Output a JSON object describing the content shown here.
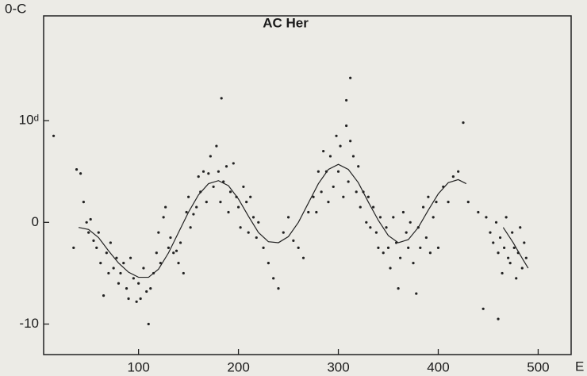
{
  "chart_data": {
    "type": "scatter",
    "title": "AC Her",
    "y_label": "0-C",
    "x_label": "E",
    "color": "#222222",
    "xlim": [
      5,
      533
    ],
    "ylim": [
      -13,
      20.3
    ],
    "xticks": [
      100,
      200,
      300,
      400,
      500
    ],
    "yticks": [
      -10,
      0,
      {
        "value": 10,
        "label": "10ᵈ"
      }
    ],
    "points": {
      "x": [
        15,
        35,
        183,
        312,
        308,
        425,
        445,
        460,
        38,
        42,
        45,
        48,
        50,
        52,
        55,
        58,
        60,
        62,
        65,
        68,
        70,
        72,
        75,
        78,
        80,
        82,
        85,
        88,
        90,
        92,
        95,
        98,
        100,
        102,
        105,
        108,
        110,
        112,
        115,
        118,
        120,
        122,
        125,
        127,
        130,
        132,
        135,
        138,
        140,
        142,
        145,
        148,
        150,
        152,
        155,
        158,
        160,
        162,
        165,
        168,
        170,
        172,
        175,
        178,
        180,
        182,
        185,
        188,
        190,
        192,
        195,
        198,
        200,
        202,
        205,
        208,
        210,
        212,
        215,
        218,
        220,
        225,
        230,
        235,
        240,
        245,
        250,
        255,
        260,
        265,
        270,
        275,
        278,
        280,
        283,
        285,
        288,
        290,
        292,
        295,
        298,
        300,
        302,
        305,
        308,
        310,
        312,
        315,
        318,
        320,
        322,
        325,
        328,
        330,
        332,
        335,
        338,
        340,
        342,
        345,
        348,
        350,
        352,
        355,
        358,
        360,
        362,
        365,
        368,
        370,
        372,
        375,
        378,
        380,
        382,
        385,
        388,
        390,
        392,
        395,
        398,
        400,
        405,
        410,
        415,
        420,
        430,
        440,
        448,
        452,
        455,
        458,
        460,
        462,
        464,
        466,
        468,
        470,
        472,
        474,
        476,
        478,
        480,
        482,
        484,
        486,
        488
      ],
      "values": [
        8.5,
        -2.5,
        12.2,
        14.2,
        12,
        9.8,
        -8.5,
        -9.5,
        5.2,
        4.8,
        2,
        0,
        -1,
        0.3,
        -1.8,
        -2.5,
        -1,
        -4,
        -7.2,
        -3,
        -5,
        -2,
        -4.5,
        -3.5,
        -6,
        -5,
        -4,
        -6.5,
        -7.5,
        -3.5,
        -5.5,
        -7.8,
        -6,
        -7.5,
        -4.5,
        -6.8,
        -10,
        -6.5,
        -5,
        -3,
        -1,
        -4,
        0.5,
        1.5,
        -2.5,
        -1.5,
        -3,
        -2.8,
        -4,
        -2,
        -5,
        1,
        2.5,
        -0.5,
        0.8,
        1.5,
        4.5,
        3,
        5,
        2,
        4.8,
        6.5,
        3.5,
        7.5,
        5,
        2,
        4,
        5.5,
        1,
        3,
        5.8,
        2.5,
        1.5,
        -0.5,
        3.5,
        2,
        -1,
        2.5,
        0.5,
        -1.5,
        0,
        -2.5,
        -4,
        -5.5,
        -6.5,
        -1,
        0.5,
        -1.8,
        -2.5,
        -3.5,
        1,
        2.5,
        1,
        5,
        3,
        7,
        5,
        2,
        6.5,
        3.5,
        8.5,
        5,
        7.5,
        2.5,
        9.5,
        4,
        8,
        6.5,
        3,
        5.5,
        1.5,
        3,
        0,
        2.5,
        -0.5,
        1.5,
        -1,
        -2.5,
        0.5,
        -3,
        -0.5,
        -2.5,
        -4.5,
        0.5,
        -2,
        -6.5,
        -3.5,
        1,
        -1,
        -2.5,
        0,
        -4,
        -7,
        -0.5,
        -2.5,
        1.5,
        -1.5,
        2.5,
        -3,
        0.5,
        2,
        -2.5,
        3.5,
        2,
        4.5,
        5,
        2,
        1,
        0.5,
        -1,
        -2,
        0,
        -3,
        -1.5,
        -5,
        -2.5,
        0.5,
        -3.5,
        -4,
        -1,
        -2.5,
        -5.5,
        -3,
        -0.5,
        -4.5,
        -2,
        -3.5
      ]
    },
    "curve": {
      "x": [
        40,
        50,
        60,
        70,
        80,
        90,
        100,
        110,
        120,
        130,
        140,
        150,
        160,
        170,
        180,
        190,
        200,
        210,
        220,
        230,
        240,
        250,
        260,
        270,
        280,
        290,
        300,
        310,
        320,
        330,
        340,
        350,
        360,
        370,
        380,
        390,
        400,
        410,
        420,
        428,
        440,
        465,
        475,
        485,
        490
      ],
      "values": [
        -0.5,
        -0.7,
        -1.5,
        -2.8,
        -4,
        -4.9,
        -5.4,
        -5.4,
        -4.6,
        -3,
        -1,
        1,
        2.7,
        3.8,
        4.1,
        3.6,
        2.3,
        0.6,
        -1,
        -1.9,
        -2,
        -1.4,
        0,
        1.9,
        3.8,
        5.2,
        5.7,
        5.2,
        3.9,
        2,
        0.2,
        -1.3,
        -2,
        -1.7,
        -0.5,
        1.2,
        2.8,
        3.9,
        4.2,
        3.8,
        null,
        -0.5,
        -2,
        -3.7,
        -4.5
      ]
    }
  }
}
